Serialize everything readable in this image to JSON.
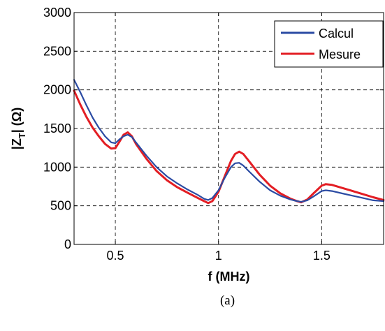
{
  "chart_data": {
    "type": "line",
    "xlabel": "f (MHz)",
    "ylabel_main": "|Z",
    "ylabel_sub": "T",
    "ylabel_rest": "| (Ω)",
    "caption": "(a)",
    "xlim": [
      0.3,
      1.8
    ],
    "ylim": [
      0,
      3000
    ],
    "x_ticks": [
      0.5,
      1,
      1.5
    ],
    "x_tick_labels": [
      "0.5",
      "1",
      "1.5"
    ],
    "y_ticks": [
      0,
      500,
      1000,
      1500,
      2000,
      2500,
      3000
    ],
    "y_tick_labels": [
      "0",
      "500",
      "1000",
      "1500",
      "2000",
      "2500",
      "3000"
    ],
    "grid": true,
    "legend_position": "top-right",
    "series": [
      {
        "name": "Calcul",
        "color": "#2b4ba3",
        "x": [
          0.3,
          0.33,
          0.36,
          0.39,
          0.42,
          0.45,
          0.48,
          0.5,
          0.52,
          0.54,
          0.56,
          0.58,
          0.6,
          0.65,
          0.7,
          0.75,
          0.8,
          0.85,
          0.9,
          0.93,
          0.95,
          0.97,
          1.0,
          1.03,
          1.06,
          1.08,
          1.1,
          1.12,
          1.15,
          1.2,
          1.25,
          1.3,
          1.35,
          1.38,
          1.4,
          1.43,
          1.46,
          1.5,
          1.52,
          1.55,
          1.6,
          1.65,
          1.7,
          1.75,
          1.8
        ],
        "y": [
          2130,
          1970,
          1800,
          1640,
          1510,
          1400,
          1320,
          1310,
          1360,
          1400,
          1420,
          1390,
          1320,
          1150,
          1000,
          880,
          790,
          710,
          640,
          590,
          575,
          600,
          700,
          860,
          1000,
          1050,
          1055,
          1020,
          940,
          810,
          700,
          630,
          580,
          560,
          550,
          570,
          620,
          690,
          700,
          690,
          660,
          630,
          600,
          570,
          560
        ]
      },
      {
        "name": "Mesure",
        "color": "#e31e24",
        "x": [
          0.3,
          0.33,
          0.36,
          0.39,
          0.42,
          0.45,
          0.48,
          0.5,
          0.52,
          0.54,
          0.56,
          0.58,
          0.6,
          0.65,
          0.7,
          0.75,
          0.8,
          0.85,
          0.9,
          0.93,
          0.95,
          0.97,
          1.0,
          1.03,
          1.06,
          1.08,
          1.1,
          1.12,
          1.15,
          1.2,
          1.25,
          1.3,
          1.35,
          1.38,
          1.4,
          1.43,
          1.46,
          1.5,
          1.52,
          1.55,
          1.6,
          1.65,
          1.7,
          1.75,
          1.8
        ],
        "y": [
          1990,
          1810,
          1650,
          1510,
          1400,
          1300,
          1240,
          1245,
          1330,
          1420,
          1450,
          1400,
          1300,
          1110,
          950,
          830,
          740,
          670,
          600,
          560,
          535,
          560,
          680,
          880,
          1080,
          1170,
          1200,
          1170,
          1070,
          900,
          760,
          660,
          590,
          560,
          545,
          580,
          660,
          760,
          780,
          770,
          730,
          690,
          650,
          610,
          575
        ]
      }
    ]
  }
}
